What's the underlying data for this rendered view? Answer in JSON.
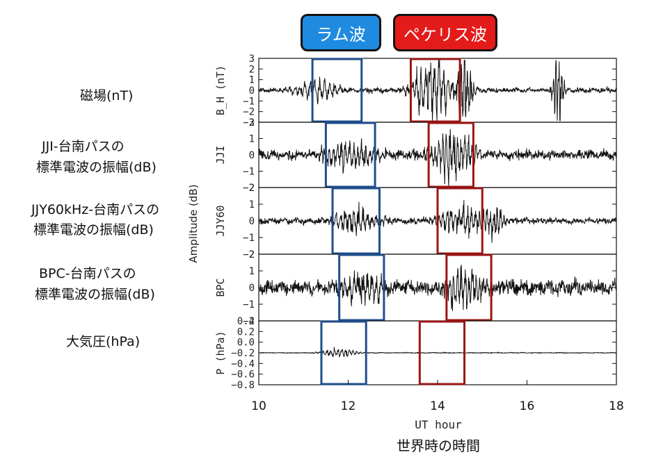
{
  "badges": {
    "rayleigh": "ラム波",
    "pekeris": "ペケリス波"
  },
  "labels": {
    "mag": "磁場(nT)",
    "jji_line1": "JJI-台南パスの",
    "jji_line2": "標準電波の振幅(dB)",
    "jjy_line1": "JJY60kHz-台南パスの",
    "jjy_line2": "標準電波の振幅(dB)",
    "bpc_line1": "BPC-台南パスの",
    "bpc_line2": "標準電波の振幅(dB)",
    "pres": "大気圧(hPa)"
  },
  "amplitude_label": "Amplitude (dB)",
  "xlabel": "UT hour",
  "xlabel_jp": "世界時の時間",
  "colors": {
    "blue_box": "#1f4e8c",
    "red_box": "#9b1515",
    "badge_blue": "#1f8be0",
    "badge_red": "#e31b1b"
  },
  "chart_data": {
    "type": "line",
    "xlim": [
      10,
      18
    ],
    "xticks": [
      "10",
      "12",
      "14",
      "16",
      "18"
    ],
    "panels": [
      {
        "ylabel": "B_H (nT)",
        "ylim": [
          -3,
          3
        ],
        "yticks": [
          "3",
          "2",
          "1",
          "0",
          "−1",
          "−2",
          "−3"
        ],
        "tickvals": [
          3,
          2,
          1,
          0,
          -1,
          -2,
          -3
        ],
        "blue_box": [
          11.2,
          12.3
        ],
        "red_box": [
          13.4,
          14.5
        ]
      },
      {
        "ylabel": "JJI",
        "ylim": [
          -2,
          2
        ],
        "yticks": [
          "2",
          "1",
          "0",
          "−1",
          "−2"
        ],
        "tickvals": [
          2,
          1,
          0,
          -1,
          -2
        ],
        "blue_box": [
          11.5,
          12.6
        ],
        "red_box": [
          13.8,
          14.8
        ]
      },
      {
        "ylabel": "JJY60",
        "ylim": [
          -2,
          2
        ],
        "yticks": [
          "2",
          "1",
          "0",
          "−1",
          "−2"
        ],
        "tickvals": [
          2,
          1,
          0,
          -1,
          -2
        ],
        "blue_box": [
          11.65,
          12.7
        ],
        "red_box": [
          14.0,
          15.0
        ]
      },
      {
        "ylabel": "BPC",
        "ylim": [
          -2,
          2
        ],
        "yticks": [
          "2",
          "1",
          "0",
          "−1",
          "−2"
        ],
        "tickvals": [
          2,
          1,
          0,
          -1,
          -2
        ],
        "blue_box": [
          11.8,
          12.8
        ],
        "red_box": [
          14.2,
          15.2
        ]
      },
      {
        "ylabel": "P (hPa)",
        "ylim": [
          -0.8,
          0.4
        ],
        "yticks": [
          "0.4",
          "0.2",
          "0.0",
          "−0.2",
          "−0.4",
          "−0.6",
          "−0.8"
        ],
        "tickvals": [
          0.4,
          0.2,
          0.0,
          -0.2,
          -0.4,
          -0.6,
          -0.8
        ],
        "blue_box": [
          11.4,
          12.4
        ],
        "red_box": [
          13.6,
          14.6
        ]
      }
    ]
  }
}
